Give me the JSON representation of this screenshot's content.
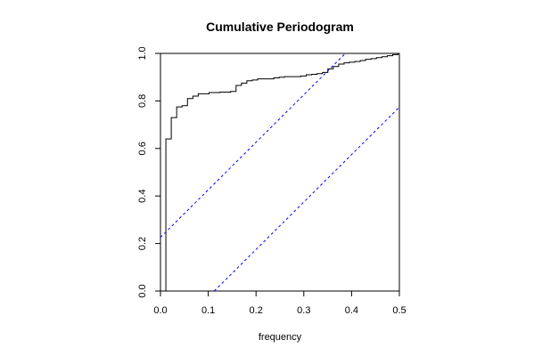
{
  "chart_data": {
    "type": "line",
    "title": "Cumulative Periodogram",
    "xlabel": "frequency",
    "ylabel": "",
    "xlim": [
      0,
      0.5
    ],
    "ylim": [
      0,
      1
    ],
    "x_ticks": [
      "0.0",
      "0.1",
      "0.2",
      "0.3",
      "0.4",
      "0.5"
    ],
    "y_ticks": [
      "0.0",
      "0.2",
      "0.4",
      "0.6",
      "0.8",
      "1.0"
    ],
    "grid": false,
    "legend": "none",
    "colors": {
      "series": "#000000",
      "bounds": "#0000ff"
    },
    "series": [
      {
        "style": "step",
        "x": [
          0.0,
          0.0113,
          0.0113,
          0.0226,
          0.0226,
          0.0339,
          0.0339,
          0.0452,
          0.0452,
          0.0565,
          0.0565,
          0.0678,
          0.0678,
          0.0791,
          0.0791,
          0.1017,
          0.1017,
          0.1243,
          0.1243,
          0.1469,
          0.1469,
          0.1582,
          0.1582,
          0.1695,
          0.1695,
          0.1808,
          0.1808,
          0.1921,
          0.1921,
          0.2034,
          0.2034,
          0.2373,
          0.2373,
          0.2486,
          0.2486,
          0.2599,
          0.2599,
          0.2938,
          0.2938,
          0.3051,
          0.3051,
          0.3164,
          0.3164,
          0.3277,
          0.3277,
          0.339,
          0.339,
          0.3503,
          0.3503,
          0.3616,
          0.3616,
          0.3729,
          0.3729,
          0.3842,
          0.3842,
          0.3955,
          0.3955,
          0.4068,
          0.4068,
          0.4181,
          0.4181,
          0.4294,
          0.4294,
          0.4407,
          0.4407,
          0.452,
          0.452,
          0.4633,
          0.4633,
          0.4746,
          0.4746,
          0.4859,
          0.4859,
          0.4972,
          0.4972
        ],
        "y": [
          0.0,
          0.0,
          0.64,
          0.64,
          0.73,
          0.73,
          0.775,
          0.775,
          0.78,
          0.78,
          0.81,
          0.81,
          0.82,
          0.82,
          0.83,
          0.83,
          0.835,
          0.835,
          0.837,
          0.837,
          0.84,
          0.84,
          0.865,
          0.865,
          0.875,
          0.875,
          0.885,
          0.885,
          0.888,
          0.888,
          0.893,
          0.893,
          0.897,
          0.897,
          0.9,
          0.9,
          0.902,
          0.902,
          0.905,
          0.905,
          0.91,
          0.91,
          0.912,
          0.912,
          0.915,
          0.915,
          0.92,
          0.92,
          0.935,
          0.935,
          0.945,
          0.945,
          0.955,
          0.955,
          0.96,
          0.96,
          0.963,
          0.963,
          0.966,
          0.966,
          0.97,
          0.97,
          0.975,
          0.975,
          0.978,
          0.978,
          0.982,
          0.982,
          0.986,
          0.986,
          0.99,
          0.99,
          0.995,
          0.995,
          1.0
        ]
      },
      {
        "style": "dashed",
        "x": [
          0.0,
          0.387
        ],
        "y": [
          0.226,
          1.0
        ]
      },
      {
        "style": "dashed",
        "x": [
          0.1125,
          0.5
        ],
        "y": [
          0.0,
          0.774
        ]
      }
    ]
  }
}
